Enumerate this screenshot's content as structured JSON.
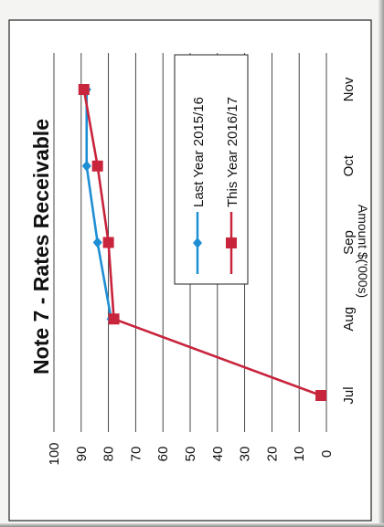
{
  "chart_data": {
    "type": "line",
    "title": "Note 7 - Rates Receivable",
    "xlabel": "",
    "ylabel": "Amount $('000s)",
    "categories": [
      "Jul",
      "Aug",
      "Sep",
      "Oct",
      "Nov"
    ],
    "ylim": [
      0,
      100
    ],
    "yticks": [
      "0",
      "10",
      "20",
      "30",
      "40",
      "50",
      "60",
      "70",
      "80",
      "90",
      "100"
    ],
    "grid": true,
    "legend_position": "top-right",
    "series": [
      {
        "name": "Last Year 2015/16",
        "values": [
          null,
          79,
          84,
          88,
          88
        ],
        "color": "#1f8fd4",
        "marker": "diamond"
      },
      {
        "name": "This Year 2016/17",
        "values": [
          2,
          78,
          80,
          84,
          89
        ],
        "color": "#c8243c",
        "marker": "square"
      }
    ]
  }
}
